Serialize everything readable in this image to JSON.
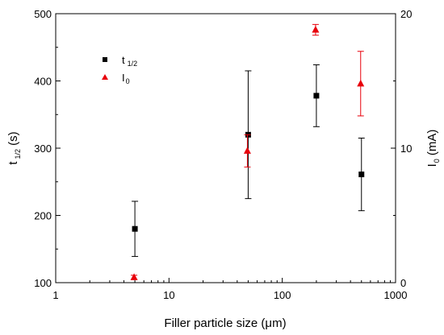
{
  "chart_data": {
    "type": "scatter",
    "x": [
      5,
      50,
      200,
      500
    ],
    "xlabel": "Filler particle size (μm)",
    "xscale": "log",
    "xlim": [
      1,
      1000
    ],
    "xticks": [
      1,
      10,
      100,
      1000
    ],
    "ylabel_left": {
      "main": "t",
      "sub": "1/2",
      "unit": " (s)"
    },
    "ylim_left": [
      100,
      500
    ],
    "yticks_left": [
      100,
      200,
      300,
      400,
      500
    ],
    "ylabel_right": {
      "main": "I",
      "sub": "0",
      "unit": " (mA)"
    },
    "ylim_right": [
      0,
      20
    ],
    "yticks_right": [
      0,
      10,
      20
    ],
    "legend_position": "upper-left",
    "series": [
      {
        "name_main": "t",
        "name_sub": "1/2",
        "axis": "left",
        "marker": "square",
        "color": "#000000",
        "values": [
          180,
          320,
          378,
          261
        ],
        "err": [
          41,
          95,
          46,
          54
        ]
      },
      {
        "name_main": "I",
        "name_sub": "0",
        "axis": "right",
        "marker": "triangle",
        "color": "#e8000b",
        "values": [
          0.4,
          9.8,
          18.8,
          14.8
        ],
        "err": [
          0.15,
          1.2,
          0.4,
          2.4
        ]
      }
    ]
  }
}
